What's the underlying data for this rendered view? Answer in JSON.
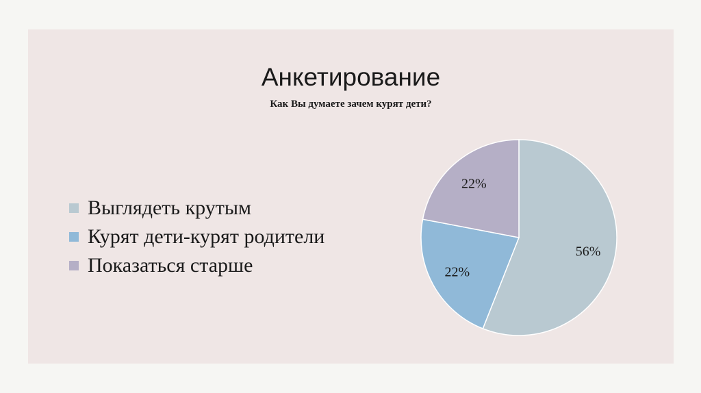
{
  "slide": {
    "title": "Анкетирование",
    "subtitle": "Как Вы думаете зачем курят дети?"
  },
  "chart_data": {
    "type": "pie",
    "title": "Как Вы думаете зачем курят дети?",
    "categories": [
      "Выглядеть крутым",
      "Курят дети-курят родители",
      "Показаться старше"
    ],
    "values": [
      56,
      22,
      22
    ],
    "data_labels": [
      "56%",
      "22%",
      "22%"
    ],
    "colors": [
      "#b9c9d1",
      "#90b9d8",
      "#b5afc6"
    ],
    "legend_position": "left"
  }
}
